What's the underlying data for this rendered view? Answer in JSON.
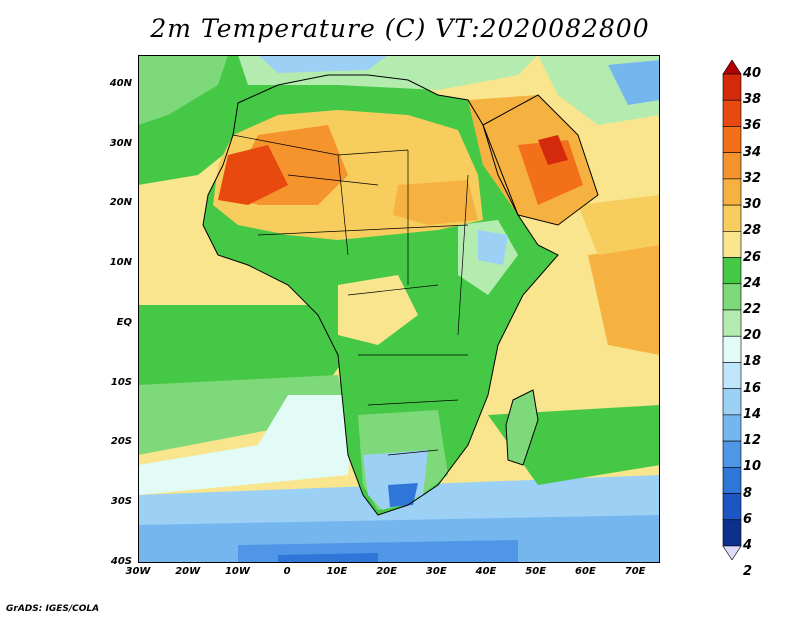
{
  "title": "2m Temperature (C) VT:2020082800",
  "credit": "GrADS: IGES/COLA",
  "map": {
    "lat_labels": [
      "40N",
      "30N",
      "20N",
      "10N",
      "EQ",
      "10S",
      "20S",
      "30S",
      "40S"
    ],
    "lon_labels": [
      "30W",
      "20W",
      "10W",
      "0",
      "10E",
      "20E",
      "30E",
      "40E",
      "50E",
      "60E",
      "70E"
    ],
    "lat_range": [
      -40,
      45
    ],
    "lon_range": [
      -30,
      75
    ]
  },
  "colorbar": {
    "levels": [
      "40",
      "38",
      "36",
      "34",
      "32",
      "30",
      "28",
      "26",
      "24",
      "22",
      "20",
      "18",
      "16",
      "14",
      "12",
      "10",
      "8",
      "6",
      "4",
      "2"
    ],
    "colors": [
      "#b30000",
      "#d42a0c",
      "#e8490f",
      "#f2701a",
      "#f5932c",
      "#f6b240",
      "#f7cd5e",
      "#f8e58d",
      "#45c845",
      "#7ed97a",
      "#b4ecb0",
      "#e2fbf6",
      "#bfe6fb",
      "#9cd0f5",
      "#76b6ef",
      "#4f97e6",
      "#2f76d9",
      "#1b56c2",
      "#0e2f8c",
      "#dcdcf8"
    ]
  }
}
